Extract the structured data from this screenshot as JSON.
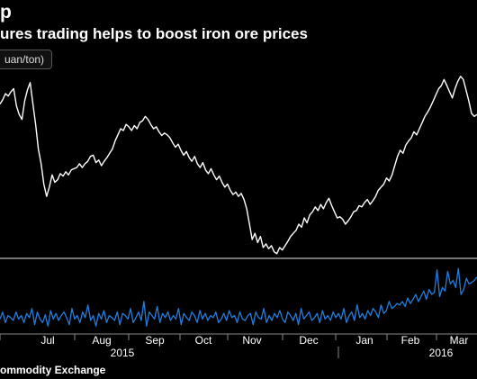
{
  "header": {
    "title": "p",
    "subtitle": "ures trading helps to boost iron ore prices",
    "unit_badge": "uan/ton)"
  },
  "footer": {
    "source": "ommodity Exchange"
  },
  "colors": {
    "background": "#000000",
    "price_line": "#ffffff",
    "volume_line": "#1f7fe0",
    "separator": "#9a9a9a",
    "tick": "#888888"
  },
  "chart_data": {
    "type": "line",
    "x_axis": {
      "month_labels": [
        "Jul",
        "Aug",
        "Sep",
        "Oct",
        "Nov",
        "Dec",
        "Jan",
        "Feb",
        "Mar"
      ],
      "year_labels": [
        "2015",
        "2016"
      ]
    },
    "panels": [
      {
        "name": "price",
        "series": [
          {
            "values": [
              55,
              62,
              72,
              68,
              75,
              80,
              52,
              38,
              30,
              60,
              78,
              90,
              55,
              22,
              -18,
              -42,
              -75,
              -95,
              -80,
              -60,
              -72,
              -68,
              -58,
              -62,
              -55,
              -60,
              -52,
              -50,
              -48,
              -42,
              -48,
              -42,
              -38,
              -30,
              -28,
              -40,
              -36,
              -45,
              -38,
              -32,
              -25,
              -18,
              -5,
              5,
              15,
              12,
              22,
              18,
              12,
              20,
              15,
              25,
              28,
              35,
              30,
              22,
              15,
              18,
              10,
              4,
              8,
              5,
              0,
              -8,
              -15,
              -10,
              -20,
              -28,
              -22,
              -32,
              -38,
              -30,
              -42,
              -48,
              -40,
              -52,
              -58,
              -50,
              -60,
              -68,
              -62,
              -72,
              -80,
              -75,
              -85,
              -92,
              -88,
              -95,
              -90,
              -100,
              -115,
              -140,
              -165,
              -155,
              -170,
              -160,
              -178,
              -172,
              -180,
              -175,
              -185,
              -188,
              -178,
              -182,
              -175,
              -168,
              -160,
              -155,
              -150,
              -140,
              -145,
              -130,
              -138,
              -125,
              -120,
              -112,
              -118,
              -108,
              -115,
              -105,
              -98,
              -110,
              -120,
              -130,
              -128,
              -132,
              -140,
              -135,
              -128,
              -120,
              -118,
              -110,
              -112,
              -105,
              -100,
              -108,
              -102,
              -95,
              -85,
              -80,
              -75,
              -65,
              -70,
              -60,
              -45,
              -30,
              -20,
              -25,
              -12,
              -5,
              0,
              10,
              5,
              15,
              25,
              35,
              42,
              50,
              60,
              70,
              80,
              85,
              95,
              85,
              75,
              65,
              80,
              92,
              100,
              95,
              78,
              60,
              40,
              35,
              38
            ],
            "ylim": [
              -200,
              110
            ]
          }
        ]
      },
      {
        "name": "trading",
        "series": [
          {
            "values": [
              20,
              30,
              15,
              25,
              22,
              18,
              30,
              20,
              25,
              15,
              28,
              22,
              35,
              12,
              30,
              20,
              15,
              26,
              10,
              32,
              20,
              28,
              18,
              25,
              30,
              22,
              12,
              35,
              20,
              25,
              15,
              30,
              22,
              40,
              18,
              25,
              10,
              28,
              20,
              32,
              15,
              25,
              22,
              18,
              30,
              12,
              28,
              25,
              20,
              35,
              15,
              22,
              30,
              18,
              45,
              10,
              30,
              25,
              20,
              38,
              15,
              28,
              22,
              30,
              18,
              25,
              20,
              35,
              12,
              28,
              22,
              18,
              30,
              25,
              15,
              32,
              20,
              28,
              18,
              25,
              22,
              30,
              15,
              20,
              28,
              18,
              32,
              22,
              25,
              15,
              30,
              20,
              18,
              25,
              28,
              12,
              30,
              22,
              20,
              35,
              15,
              25,
              18,
              28,
              22,
              32,
              20,
              15,
              30,
              25,
              18,
              28,
              12,
              35,
              20,
              25,
              30,
              18,
              22,
              28,
              15,
              32,
              20,
              25,
              18,
              30,
              22,
              28,
              20,
              35,
              15,
              25,
              30,
              18,
              40,
              22,
              28,
              20,
              32,
              25,
              35,
              30,
              22,
              40,
              28,
              32,
              45,
              35,
              38,
              42,
              40,
              45,
              38,
              50,
              42,
              48,
              55,
              45,
              52,
              60,
              48,
              62,
              55,
              58,
              90,
              52,
              65,
              60,
              88,
              70,
              75,
              65,
              92,
              55,
              62,
              78,
              70,
              72,
              75,
              80
            ],
            "ylim": [
              0,
              100
            ]
          }
        ]
      }
    ]
  }
}
